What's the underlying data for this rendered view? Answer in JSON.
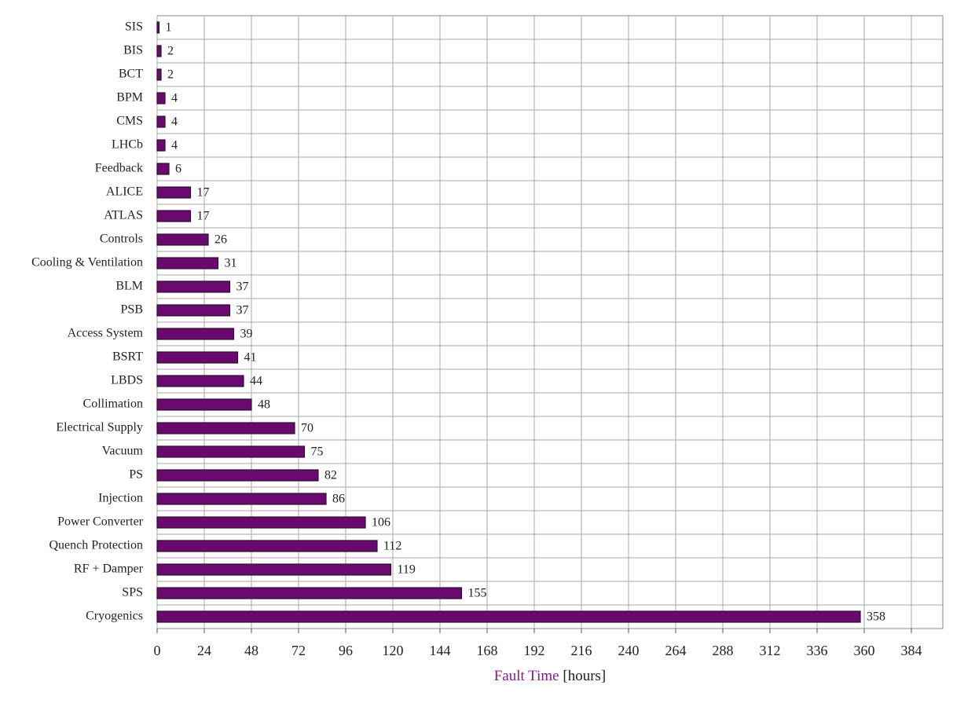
{
  "chart_data": {
    "type": "barh",
    "categories": [
      "SIS",
      "BIS",
      "BCT",
      "BPM",
      "CMS",
      "LHCb",
      "Feedback",
      "ALICE",
      "ATLAS",
      "Controls",
      "Cooling & Ventilation",
      "BLM",
      "PSB",
      "Access System",
      "BSRT",
      "LBDS",
      "Collimation",
      "Electrical Supply",
      "Vacuum",
      "PS",
      "Injection",
      "Power Converter",
      "Quench Protection",
      "RF + Damper",
      "SPS",
      "Cryogenics"
    ],
    "values": [
      1,
      2,
      2,
      4,
      4,
      4,
      6,
      17,
      17,
      26,
      31,
      37,
      37,
      39,
      41,
      44,
      48,
      70,
      75,
      82,
      86,
      106,
      112,
      119,
      155,
      358
    ],
    "color": "#6b0a6e",
    "label_color": "#8b1a8b",
    "xlabel": "Fault Time",
    "xlabel_unit": "[hours]",
    "xlim": [
      0,
      400
    ],
    "xticks": [
      0,
      24,
      48,
      72,
      96,
      120,
      144,
      168,
      192,
      216,
      240,
      264,
      288,
      312,
      336,
      360,
      384
    ],
    "grid": true
  }
}
